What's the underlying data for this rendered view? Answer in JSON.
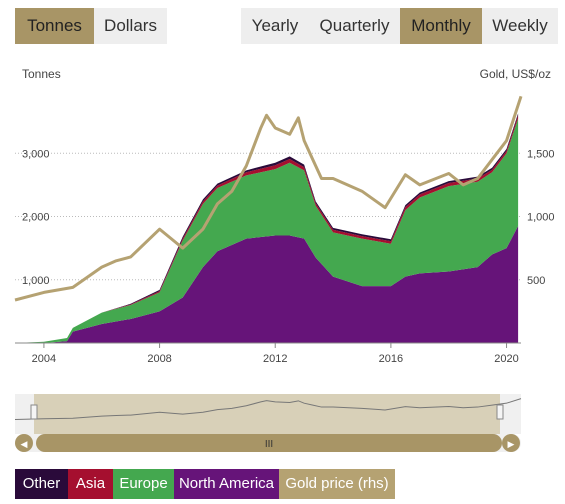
{
  "toggles": {
    "unit": [
      {
        "label": "Tonnes",
        "active": true
      },
      {
        "label": "Dollars",
        "active": false
      }
    ],
    "freq": [
      {
        "label": "Yearly",
        "active": false
      },
      {
        "label": "Quarterly",
        "active": false
      },
      {
        "label": "Monthly",
        "active": true
      },
      {
        "label": "Weekly",
        "active": false
      }
    ]
  },
  "colors": {
    "other": "#2a0a3a",
    "asia": "#a50f2f",
    "europe": "#44a84f",
    "north_america": "#661479",
    "gold": "#b5a272",
    "accent": "#a89566",
    "grid": "#bbbbbb"
  },
  "navigator": {
    "handle_glyph": "III",
    "left_arrow": "◀",
    "right_arrow": "▶"
  },
  "legend": [
    {
      "label": "Other",
      "color": "#2a0a3a"
    },
    {
      "label": "Asia",
      "color": "#a50f2f"
    },
    {
      "label": "Europe",
      "color": "#44a84f"
    },
    {
      "label": "North America",
      "color": "#661479"
    },
    {
      "label": "Gold price (rhs)",
      "color": "#b5a272"
    }
  ],
  "chart_data": {
    "type": "area",
    "ylabel_left": "Tonnes",
    "ylabel_right": "Gold, US$/oz",
    "xticks": [
      2004,
      2008,
      2012,
      2016,
      2020
    ],
    "yticks_left": [
      1000,
      2000,
      3000
    ],
    "yticks_right": [
      500,
      1000,
      1500
    ],
    "ylim_left": [
      0,
      4000
    ],
    "ylim_right": [
      0,
      2000
    ],
    "x": [
      2003.0,
      2004.0,
      2004.8,
      2005.0,
      2006.0,
      2007.0,
      2008.0,
      2008.8,
      2009.5,
      2010.0,
      2011.0,
      2012.0,
      2012.5,
      2013.0,
      2013.4,
      2014.0,
      2015.0,
      2016.0,
      2016.5,
      2017.0,
      2018.0,
      2019.0,
      2019.5,
      2020.0,
      2020.4
    ],
    "series": [
      {
        "name": "North America",
        "values": [
          0,
          0,
          30,
          180,
          300,
          380,
          500,
          720,
          1200,
          1450,
          1650,
          1700,
          1700,
          1650,
          1350,
          1050,
          900,
          900,
          1050,
          1100,
          1130,
          1200,
          1400,
          1500,
          1850
        ]
      },
      {
        "name": "Europe",
        "values": [
          0,
          20,
          50,
          60,
          180,
          220,
          300,
          900,
          1000,
          1000,
          1000,
          1050,
          1150,
          1080,
          820,
          700,
          750,
          670,
          1050,
          1200,
          1350,
          1350,
          1300,
          1500,
          1700
        ]
      },
      {
        "name": "Asia",
        "values": [
          0,
          0,
          0,
          0,
          0,
          10,
          20,
          30,
          40,
          40,
          50,
          60,
          60,
          50,
          40,
          40,
          40,
          40,
          50,
          50,
          50,
          50,
          40,
          40,
          50
        ]
      },
      {
        "name": "Other",
        "values": [
          0,
          0,
          0,
          0,
          0,
          10,
          20,
          30,
          30,
          30,
          30,
          40,
          40,
          40,
          30,
          30,
          30,
          30,
          30,
          30,
          30,
          30,
          30,
          30,
          30
        ]
      },
      {
        "name": "Gold price (rhs)",
        "axis": "right",
        "x": [
          2003.0,
          2004.0,
          2005.0,
          2006.0,
          2006.5,
          2007.0,
          2008.0,
          2008.8,
          2009.5,
          2010.0,
          2010.5,
          2011.0,
          2011.5,
          2011.7,
          2012.0,
          2012.5,
          2012.8,
          2013.0,
          2013.3,
          2013.6,
          2014.0,
          2015.0,
          2015.8,
          2016.5,
          2017.0,
          2018.0,
          2018.5,
          2019.0,
          2019.5,
          2020.0,
          2020.5
        ],
        "values": [
          340,
          400,
          440,
          600,
          650,
          680,
          900,
          750,
          900,
          1100,
          1200,
          1400,
          1700,
          1800,
          1700,
          1650,
          1780,
          1600,
          1450,
          1300,
          1300,
          1200,
          1070,
          1330,
          1250,
          1340,
          1250,
          1300,
          1450,
          1600,
          1950
        ]
      }
    ]
  }
}
